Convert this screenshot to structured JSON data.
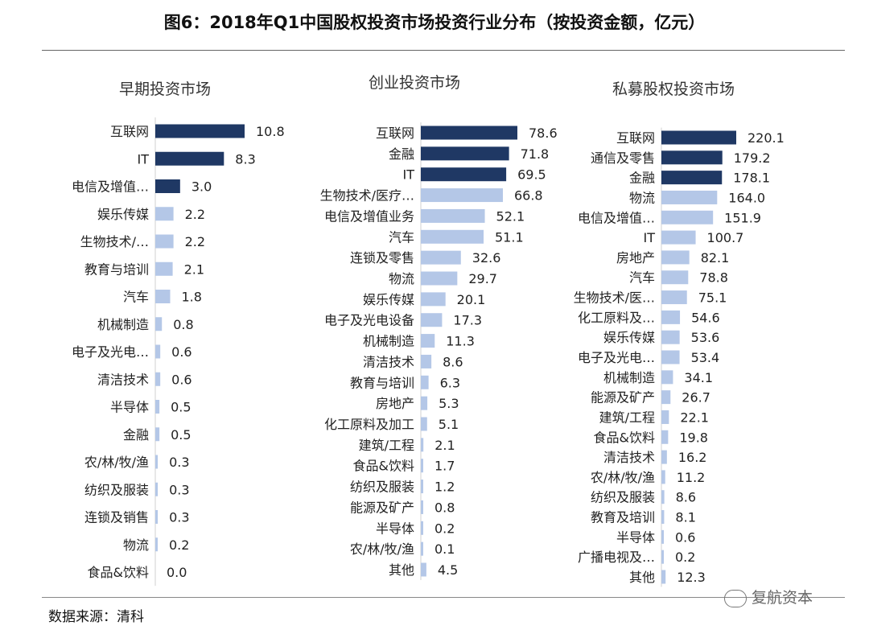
{
  "title": "图6：2018年Q1中国股权投资市场投资行业分布（按投资金额，亿元）",
  "source": "数据来源：清科",
  "watermark": "复航资本",
  "colors": {
    "dark": "#1f3864",
    "light": "#b4c7e7"
  },
  "chart_data": [
    {
      "type": "bar",
      "orientation": "horizontal",
      "title": "早期投资市场",
      "unit": "亿元",
      "categories": [
        "互联网",
        "IT",
        "电信及增值…",
        "娱乐传媒",
        "生物技术/…",
        "教育与培训",
        "汽车",
        "机械制造",
        "电子及光电…",
        "清洁技术",
        "半导体",
        "金融",
        "农/林/牧/渔",
        "纺织及服装",
        "连锁及销售",
        "物流",
        "食品&饮料"
      ],
      "values": [
        10.8,
        8.3,
        3.0,
        2.2,
        2.2,
        2.1,
        1.8,
        0.8,
        0.6,
        0.6,
        0.5,
        0.5,
        0.3,
        0.3,
        0.3,
        0.2,
        0.0
      ],
      "labels": [
        "10.8",
        "8.3",
        "3.0",
        "2.2",
        "2.2",
        "2.1",
        "1.8",
        "0.8",
        "0.6",
        "0.6",
        "0.5",
        "0.5",
        "0.3",
        "0.3",
        "0.3",
        "0.2",
        "0.0"
      ],
      "highlight_top": 3
    },
    {
      "type": "bar",
      "orientation": "horizontal",
      "title": "创业投资市场",
      "unit": "亿元",
      "categories": [
        "互联网",
        "金融",
        "IT",
        "生物技术/医疗…",
        "电信及增值业务",
        "汽车",
        "连锁及零售",
        "物流",
        "娱乐传媒",
        "电子及光电设备",
        "机械制造",
        "清洁技术",
        "教育与培训",
        "房地产",
        "化工原料及加工",
        "建筑/工程",
        "食品&饮料",
        "纺织及服装",
        "能源及矿产",
        "半导体",
        "农/林/牧/渔",
        "其他"
      ],
      "values": [
        78.6,
        71.8,
        69.5,
        66.8,
        52.1,
        51.1,
        32.6,
        29.7,
        20.1,
        17.3,
        11.3,
        8.6,
        6.3,
        5.3,
        5.1,
        2.1,
        1.7,
        1.2,
        0.8,
        0.2,
        0.1,
        4.5
      ],
      "labels": [
        "78.6",
        "71.8",
        "69.5",
        "66.8",
        "52.1",
        "51.1",
        "32.6",
        "29.7",
        "20.1",
        "17.3",
        "11.3",
        "8.6",
        "6.3",
        "5.3",
        "5.1",
        "2.1",
        "1.7",
        "1.2",
        "0.8",
        "0.2",
        "0.1",
        "4.5"
      ],
      "highlight_top": 3
    },
    {
      "type": "bar",
      "orientation": "horizontal",
      "title": "私募股权投资市场",
      "unit": "亿元",
      "categories": [
        "互联网",
        "通信及零售",
        "金融",
        "物流",
        "电信及增值…",
        "IT",
        "房地产",
        "汽车",
        "生物技术/医…",
        "化工原料及…",
        "娱乐传媒",
        "电子及光电…",
        "机械制造",
        "能源及矿产",
        "建筑/工程",
        "食品&饮料",
        "清洁技术",
        "农/林/牧/渔",
        "纺织及服装",
        "教育及培训",
        "半导体",
        "广播电视及…",
        "其他"
      ],
      "values": [
        220.1,
        179.2,
        178.1,
        164.0,
        151.9,
        100.7,
        82.1,
        78.8,
        75.1,
        54.6,
        53.6,
        53.4,
        34.1,
        26.7,
        22.1,
        19.8,
        16.2,
        11.2,
        8.6,
        8.1,
        0.6,
        0.2,
        12.3
      ],
      "labels": [
        "220.1",
        "179.2",
        "178.1",
        "164.0",
        "151.9",
        "100.7",
        "82.1",
        "78.8",
        "75.1",
        "54.6",
        "53.6",
        "53.4",
        "34.1",
        "26.7",
        "22.1",
        "19.8",
        "16.2",
        "11.2",
        "8.6",
        "8.1",
        "0.6",
        "0.2",
        "12.3"
      ],
      "highlight_top": 3
    }
  ]
}
